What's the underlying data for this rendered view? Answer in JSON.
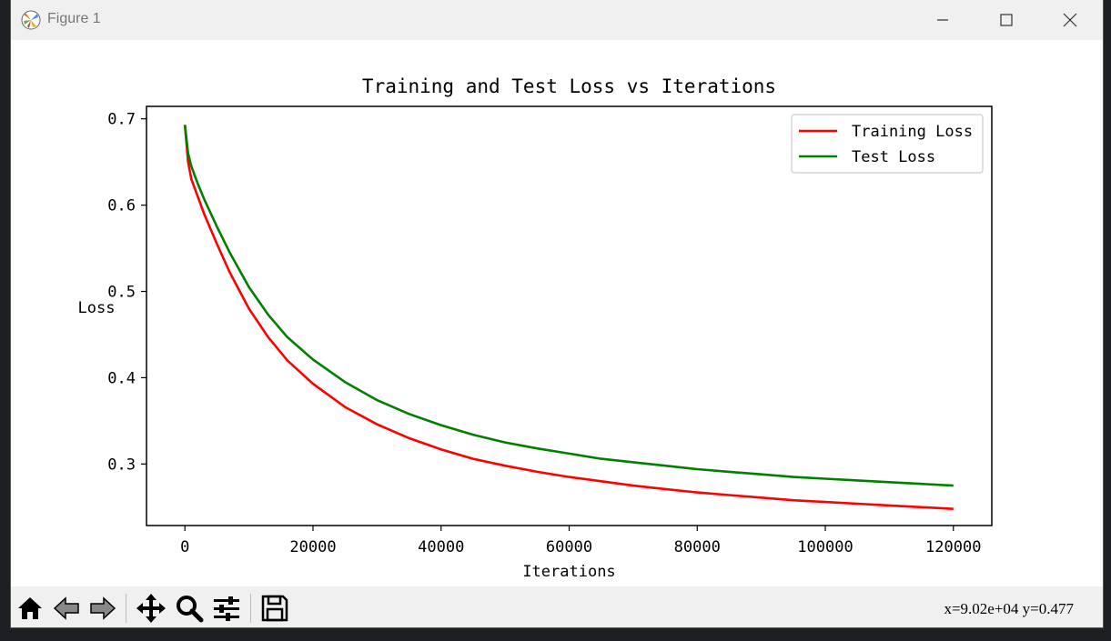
{
  "window": {
    "title": "Figure 1"
  },
  "chart_data": {
    "type": "line",
    "title": "Training and Test Loss vs Iterations",
    "xlabel": "Iterations",
    "ylabel": "Loss",
    "xlim": [
      -6000,
      126000
    ],
    "ylim": [
      0.2287,
      0.7144
    ],
    "xticks": [
      "0",
      "20000",
      "40000",
      "60000",
      "80000",
      "100000",
      "120000"
    ],
    "yticks": [
      "0.3",
      "0.4",
      "0.5",
      "0.6",
      "0.7"
    ],
    "grid": false,
    "legend_position": "top-right",
    "series": [
      {
        "name": "Training Loss",
        "color": "#ff0000",
        "x": [
          0,
          500,
          1000,
          2000,
          3000,
          5000,
          7000,
          10000,
          13000,
          16000,
          20000,
          25000,
          30000,
          35000,
          40000,
          45000,
          50000,
          55000,
          60000,
          65000,
          70000,
          75000,
          80000,
          85000,
          90000,
          95000,
          100000,
          105000,
          110000,
          115000,
          120000
        ],
        "y": [
          0.693,
          0.65,
          0.63,
          0.61,
          0.59,
          0.555,
          0.522,
          0.48,
          0.447,
          0.42,
          0.393,
          0.366,
          0.346,
          0.33,
          0.317,
          0.306,
          0.298,
          0.291,
          0.285,
          0.28,
          0.275,
          0.271,
          0.267,
          0.264,
          0.261,
          0.258,
          0.256,
          0.254,
          0.252,
          0.25,
          0.248
        ]
      },
      {
        "name": "Test Loss",
        "color": "#008000",
        "x": [
          0,
          500,
          1000,
          2000,
          3000,
          5000,
          7000,
          10000,
          13000,
          16000,
          20000,
          25000,
          30000,
          35000,
          40000,
          45000,
          50000,
          55000,
          60000,
          65000,
          70000,
          75000,
          80000,
          85000,
          90000,
          95000,
          100000,
          105000,
          110000,
          115000,
          120000
        ],
        "y": [
          0.693,
          0.66,
          0.645,
          0.625,
          0.607,
          0.575,
          0.545,
          0.505,
          0.473,
          0.447,
          0.421,
          0.395,
          0.374,
          0.358,
          0.345,
          0.334,
          0.325,
          0.318,
          0.312,
          0.306,
          0.302,
          0.298,
          0.294,
          0.291,
          0.288,
          0.285,
          0.283,
          0.281,
          0.279,
          0.277,
          0.275
        ]
      }
    ]
  },
  "toolbar": {
    "home": "home-icon",
    "back": "back-arrow-icon",
    "forward": "forward-arrow-icon",
    "pan": "pan-icon",
    "zoom": "zoom-icon",
    "configure": "configure-subplots-icon",
    "save": "save-icon",
    "coords": "x=9.02e+04 y=0.477"
  }
}
